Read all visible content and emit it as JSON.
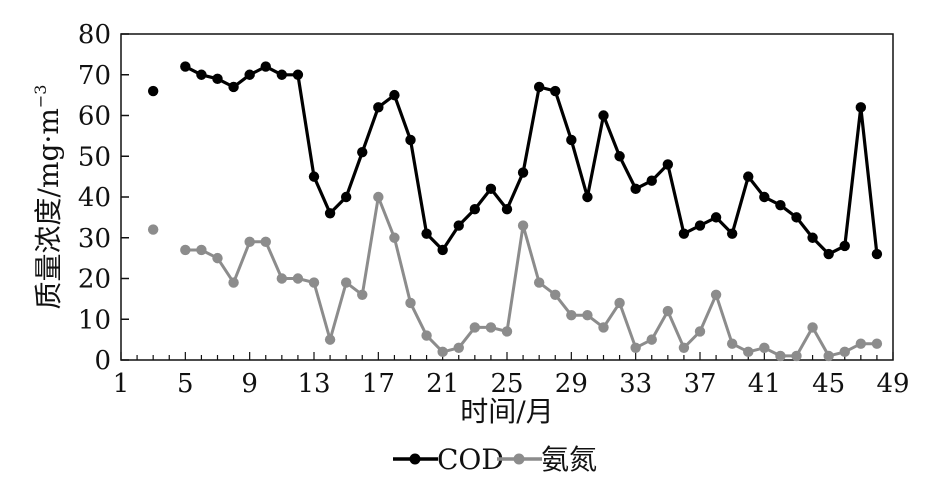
{
  "chart_data": {
    "type": "line",
    "xlabel": "时间/月",
    "ylabel": "质量浓度/mg·m",
    "ylabel_superscript": "−3",
    "xlim": [
      1,
      49
    ],
    "ylim": [
      0,
      80
    ],
    "x_ticks": [
      "1",
      "5",
      "9",
      "13",
      "17",
      "21",
      "25",
      "29",
      "33",
      "37",
      "41",
      "45",
      "49"
    ],
    "y_ticks": [
      "0",
      "10",
      "20",
      "30",
      "40",
      "50",
      "60",
      "70",
      "80"
    ],
    "grid": false,
    "legend_position": "bottom",
    "series": [
      {
        "name": "COD",
        "color": "#000000",
        "marker": "circle",
        "x": [
          3,
          5,
          6,
          7,
          8,
          9,
          10,
          11,
          12,
          13,
          14,
          15,
          16,
          17,
          18,
          19,
          20,
          21,
          22,
          23,
          24,
          25,
          26,
          27,
          28,
          29,
          30,
          31,
          32,
          33,
          34,
          35,
          36,
          37,
          38,
          39,
          40,
          41,
          42,
          43,
          44,
          45,
          46,
          47,
          48
        ],
        "y": [
          66,
          72,
          70,
          69,
          67,
          70,
          72,
          70,
          70,
          45,
          36,
          40,
          51,
          62,
          65,
          54,
          31,
          27,
          33,
          37,
          42,
          37,
          46,
          67,
          66,
          54,
          40,
          60,
          50,
          42,
          44,
          48,
          31,
          33,
          35,
          31,
          45,
          40,
          38,
          35,
          30,
          26,
          28,
          62,
          26
        ]
      },
      {
        "name": "氨氮",
        "color": "#8c8c8c",
        "marker": "circle",
        "x": [
          3,
          5,
          6,
          7,
          8,
          9,
          10,
          11,
          12,
          13,
          14,
          15,
          16,
          17,
          18,
          19,
          20,
          21,
          22,
          23,
          24,
          25,
          26,
          27,
          28,
          29,
          30,
          31,
          32,
          33,
          34,
          35,
          36,
          37,
          38,
          39,
          40,
          41,
          42,
          43,
          44,
          45,
          46,
          47,
          48
        ],
        "y": [
          32,
          27,
          27,
          25,
          19,
          29,
          29,
          20,
          20,
          19,
          5,
          19,
          16,
          40,
          30,
          14,
          6,
          2,
          3,
          8,
          8,
          7,
          33,
          19,
          16,
          11,
          11,
          8,
          14,
          3,
          5,
          12,
          3,
          7,
          16,
          4,
          2,
          3,
          1,
          1,
          8,
          1,
          2,
          4,
          4
        ]
      }
    ]
  }
}
